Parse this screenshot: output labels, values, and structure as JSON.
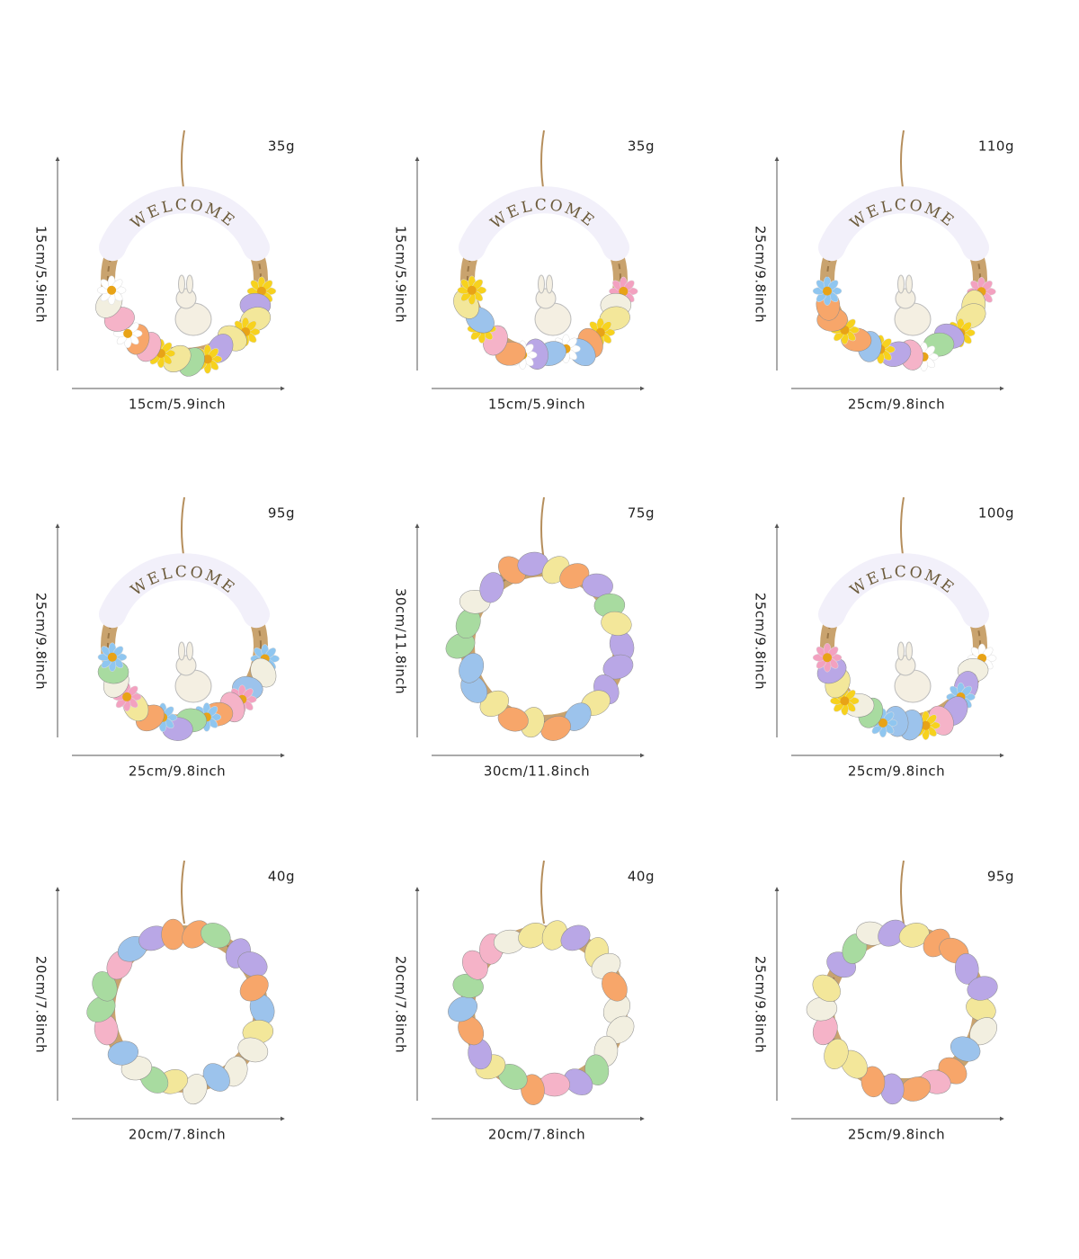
{
  "items": [
    {
      "weight": "35g",
      "height": "15cm/5.9inch",
      "width": "15cm/5.9inch",
      "welcome_sign": "WELCOME"
    },
    {
      "weight": "35g",
      "height": "15cm/5.9inch",
      "width": "15cm/5.9inch",
      "welcome_sign": "WELCOME"
    },
    {
      "weight": "110g",
      "height": "25cm/9.8inch",
      "width": "25cm/9.8inch",
      "welcome_sign": "WELCOME"
    },
    {
      "weight": "95g",
      "height": "25cm/9.8inch",
      "width": "25cm/9.8inch",
      "welcome_sign": "WELCOME"
    },
    {
      "weight": "75g",
      "height": "30cm/11.8inch",
      "width": "30cm/11.8inch"
    },
    {
      "weight": "100g",
      "height": "25cm/9.8inch",
      "width": "25cm/9.8inch",
      "welcome_sign": "WELCOME"
    },
    {
      "weight": "40g",
      "height": "20cm/7.8inch",
      "width": "20cm/7.8inch"
    },
    {
      "weight": "40g",
      "height": "20cm/7.8inch",
      "width": "20cm/7.8inch"
    },
    {
      "weight": "95g",
      "height": "25cm/9.8inch",
      "width": "25cm/9.8inch"
    }
  ]
}
